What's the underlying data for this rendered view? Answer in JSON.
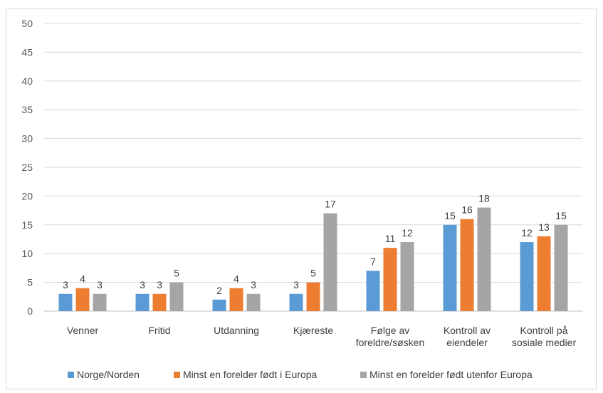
{
  "chart_data": {
    "type": "bar",
    "categories": [
      [
        "Venner"
      ],
      [
        "Fritid"
      ],
      [
        "Utdanning"
      ],
      [
        "Kjæreste"
      ],
      [
        "Følge av",
        "foreldre/søsken"
      ],
      [
        "Kontroll av",
        "eiendeler"
      ],
      [
        "Kontroll på",
        "sosiale medier"
      ]
    ],
    "series": [
      {
        "name": "Norge/Norden",
        "color": "#5b9bd5",
        "values": [
          3,
          3,
          2,
          3,
          7,
          15,
          12
        ]
      },
      {
        "name": "Minst en forelder født i Europa",
        "color": "#ed7d31",
        "values": [
          4,
          3,
          4,
          5,
          11,
          16,
          13
        ]
      },
      {
        "name": "Minst en forelder født utenfor Europa",
        "color": "#a5a5a5",
        "values": [
          3,
          5,
          3,
          17,
          12,
          18,
          15
        ]
      }
    ],
    "ylim": [
      0,
      50
    ],
    "yticks": [
      0,
      5,
      10,
      15,
      20,
      25,
      30,
      35,
      40,
      45,
      50
    ],
    "grid": true,
    "legend": "bottom"
  }
}
